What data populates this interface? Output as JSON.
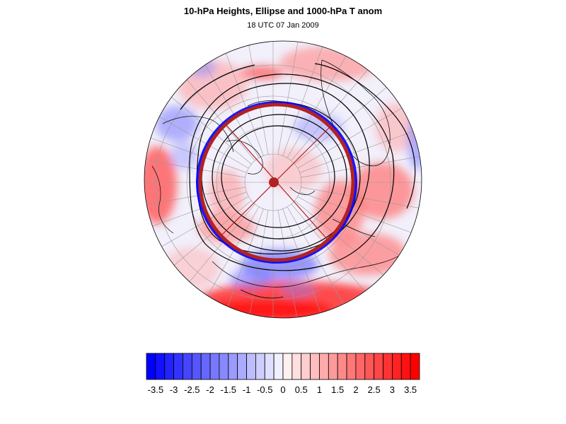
{
  "header": {
    "title": "10-hPa Heights, Ellipse and 1000-hPa T anom",
    "subtitle": "18 UTC 07 Jan 2009"
  },
  "map": {
    "projection": "polar-stereographic-north",
    "overlays": [
      "temperature-anomaly-shading",
      "geopotential-height-contours",
      "vortex-ellipse",
      "ellipse-center",
      "coastlines",
      "lat-lon-grid"
    ]
  },
  "colorbar": {
    "labels": [
      "-3.5",
      "-3",
      "-2.5",
      "-2",
      "-1.5",
      "-1",
      "-0.5",
      "0",
      "0.5",
      "1",
      "1.5",
      "2",
      "2.5",
      "3",
      "3.5"
    ],
    "min": -3.75,
    "max": 3.75,
    "step": 0.25,
    "negative_color": "#0000ff",
    "positive_color": "#ff0000",
    "ellipse_color": "#b22222"
  }
}
